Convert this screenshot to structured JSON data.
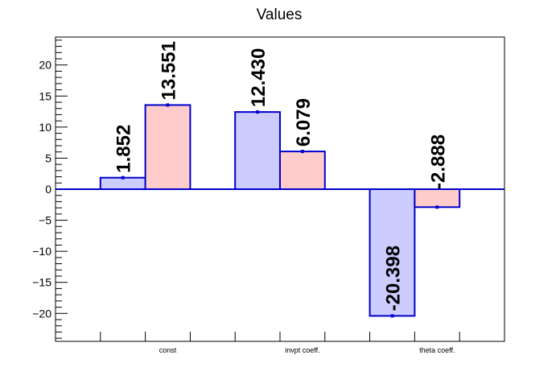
{
  "chart_data": {
    "type": "bar",
    "title": "Values",
    "categories": [
      "const",
      "invpt coeff.",
      "theta coeff."
    ],
    "series": [
      {
        "values": [
          1.852,
          12.43,
          -20.398
        ],
        "fill": "#ccccff",
        "stroke": "#0000cc"
      },
      {
        "values": [
          13.551,
          6.079,
          -2.888
        ],
        "fill": "#ffcccc",
        "stroke": "#0000cc"
      }
    ],
    "data_labels": [
      [
        "1.852",
        "12.430",
        "-20.398"
      ],
      [
        "13.551",
        "6.079",
        "-2.888"
      ]
    ],
    "ylim": [
      -24.5,
      24.5
    ],
    "yticks": [
      -20,
      -15,
      -10,
      -5,
      0,
      5,
      10,
      15,
      20
    ],
    "ytick_labels": [
      "−20",
      "−15",
      "−10",
      "−5",
      "0",
      "5",
      "10",
      "15",
      "20"
    ],
    "xlabel": "",
    "ylabel": "",
    "grid": false,
    "legend": "none"
  }
}
